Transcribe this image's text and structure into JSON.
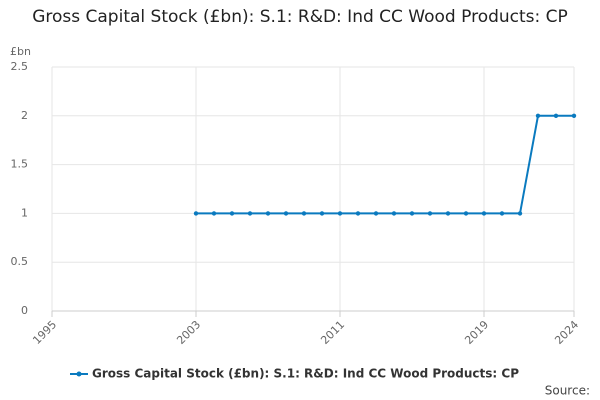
{
  "chart_data": {
    "type": "line",
    "title": "Gross Capital Stock (£bn): S.1: R&D: Ind CC Wood Products: CP",
    "y_unit": "£bn",
    "source": "Source:",
    "x": [
      2003,
      2004,
      2005,
      2006,
      2007,
      2008,
      2009,
      2010,
      2011,
      2012,
      2013,
      2014,
      2015,
      2016,
      2017,
      2018,
      2019,
      2020,
      2021,
      2022,
      2023,
      2024
    ],
    "series": [
      {
        "name": "Gross Capital Stock (£bn): S.1: R&D: Ind CC Wood Products: CP",
        "color": "#0a7abf",
        "values": [
          1,
          1,
          1,
          1,
          1,
          1,
          1,
          1,
          1,
          1,
          1,
          1,
          1,
          1,
          1,
          1,
          1,
          1,
          1,
          2,
          2,
          2
        ]
      }
    ],
    "xlim": [
      1995,
      2024
    ],
    "xticks": [
      1995,
      2003,
      2011,
      2019,
      2024
    ],
    "ylim": [
      0,
      2.5
    ],
    "yticks": [
      0,
      0.5,
      1,
      1.5,
      2,
      2.5
    ],
    "grid": true
  }
}
